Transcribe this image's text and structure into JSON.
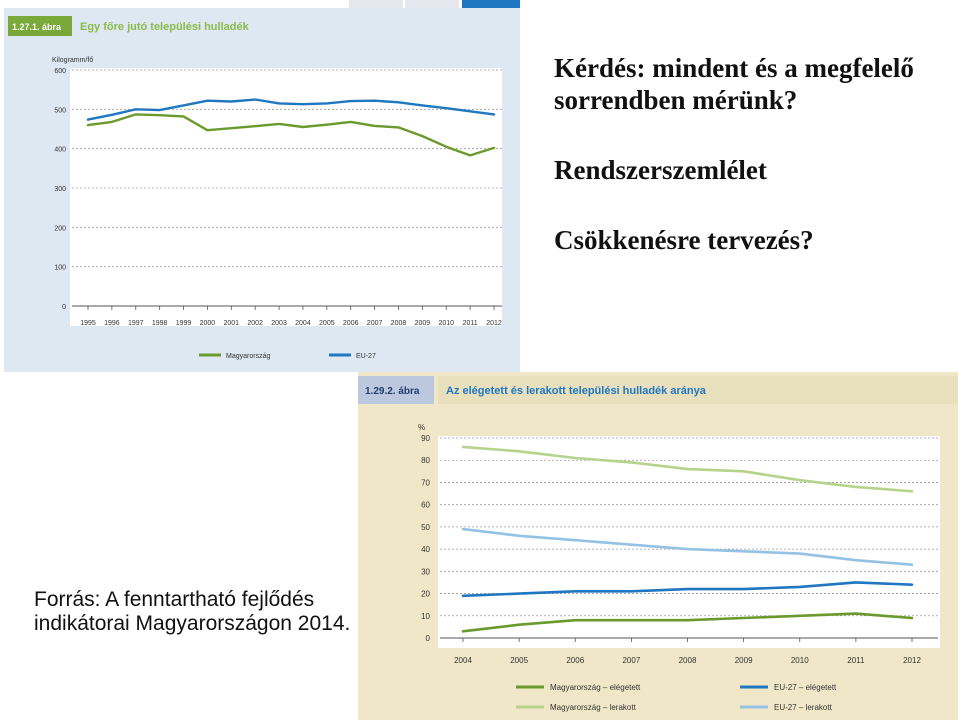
{
  "slide_text": {
    "question": "Kérdés: mindent és a megfelelő sorrendben mérünk?",
    "concept": "Rendszerszemlélet",
    "planning": "Csökkenésre tervezés?",
    "source": "Forrás: A fenntartható fejlődés indikátorai Magyarországon 2014."
  },
  "colors": {
    "green_dark": "#6a9a2c",
    "green_light": "#b5d38a",
    "blue_dark": "#1f77c2",
    "blue_light": "#93c2e4",
    "panel_bg": "#dde8f2",
    "panel_bg2": "#efe7c8",
    "header_bg": "#7aa839",
    "header_bg2": "#bcc8dd"
  },
  "chart_data": [
    {
      "type": "line",
      "figure_number": "1.27.1. ábra",
      "title": "Egy főre jutó települési hulladék",
      "ylabel": "Kilogramm/fő",
      "ylim": [
        0,
        600
      ],
      "yticks": [
        0,
        100,
        200,
        300,
        400,
        500,
        600
      ],
      "grid": true,
      "categories": [
        "1995",
        "1996",
        "1997",
        "1998",
        "1999",
        "2000",
        "2001",
        "2002",
        "2003",
        "2004",
        "2005",
        "2006",
        "2007",
        "2008",
        "2009",
        "2010",
        "2011",
        "2012"
      ],
      "series": [
        {
          "name": "Magyarország",
          "color_key": "green_dark",
          "values": [
            460,
            468,
            487,
            485,
            482,
            447,
            452,
            457,
            463,
            455,
            461,
            468,
            458,
            454,
            432,
            405,
            383,
            402
          ]
        },
        {
          "name": "EU-27",
          "color_key": "blue_dark",
          "values": [
            474,
            486,
            500,
            498,
            510,
            522,
            520,
            525,
            515,
            513,
            515,
            521,
            522,
            518,
            510,
            503,
            495,
            487
          ]
        }
      ]
    },
    {
      "type": "line",
      "figure_number": "1.29.2. ábra",
      "title": "Az elégetett és lerakott települési hulladék aránya",
      "ylabel": "%",
      "ylim": [
        0,
        90
      ],
      "yticks": [
        0,
        10,
        20,
        30,
        40,
        50,
        60,
        70,
        80,
        90
      ],
      "grid": true,
      "categories": [
        "2004",
        "2005",
        "2006",
        "2007",
        "2008",
        "2009",
        "2010",
        "2011",
        "2012"
      ],
      "series": [
        {
          "name": "Magyarország – elégetett",
          "color_key": "green_dark",
          "values": [
            3,
            6,
            8,
            8,
            8,
            9,
            10,
            11,
            9
          ]
        },
        {
          "name": "Magyarország – lerakott",
          "color_key": "green_light",
          "values": [
            86,
            84,
            81,
            79,
            76,
            75,
            71,
            68,
            66
          ]
        },
        {
          "name": "EU-27 – elégetett",
          "color_key": "blue_dark",
          "values": [
            19,
            20,
            21,
            21,
            22,
            22,
            23,
            25,
            24
          ]
        },
        {
          "name": "EU-27 – lerakott",
          "color_key": "blue_light",
          "values": [
            49,
            46,
            44,
            42,
            40,
            39,
            38,
            35,
            33
          ]
        }
      ]
    }
  ]
}
